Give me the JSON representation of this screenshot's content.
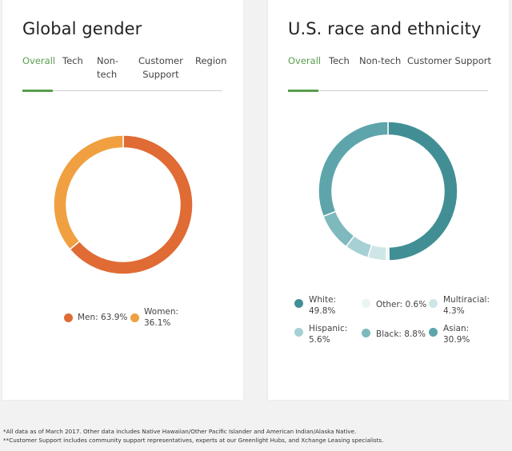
{
  "gender": {
    "title": "Global gender",
    "tabs": [
      {
        "label": "Overall",
        "active": true
      },
      {
        "label": "Tech",
        "active": false
      },
      {
        "label": "Non-\ntech",
        "active": false
      },
      {
        "label": "Customer\nSupport",
        "active": false
      },
      {
        "label": "Region",
        "active": false
      }
    ],
    "chart_data": {
      "type": "pie",
      "categories": [
        "Men",
        "Women"
      ],
      "values": [
        63.9,
        36.1
      ],
      "colors": [
        "#e06b35",
        "#f0a040"
      ]
    },
    "legend": [
      {
        "label": "Men: 63.9%",
        "color": "#e06b35"
      },
      {
        "label": "Women:\n36.1%",
        "color": "#f0a040"
      }
    ]
  },
  "race": {
    "title": "U.S. race and ethnicity",
    "tabs": [
      {
        "label": "Overall",
        "active": true
      },
      {
        "label": "Tech",
        "active": false
      },
      {
        "label": "Non-tech",
        "active": false
      },
      {
        "label": "Customer Support",
        "active": false
      }
    ],
    "chart_data": {
      "type": "pie",
      "categories": [
        "White",
        "Other",
        "Multiracial",
        "Hispanic",
        "Black",
        "Asian"
      ],
      "values": [
        49.8,
        0.6,
        4.3,
        5.6,
        8.8,
        30.9
      ],
      "colors": [
        "#418f95",
        "#e9f5f5",
        "#cfe6e7",
        "#a6d0d3",
        "#7eb9bd",
        "#5ea5ab"
      ]
    },
    "legend": [
      {
        "label": "White:\n49.8%",
        "color": "#418f95"
      },
      {
        "label": "Other: 0.6%",
        "color": "#e9f5f5"
      },
      {
        "label": "Multiracial:\n4.3%",
        "color": "#cfe6e7"
      },
      {
        "label": "Hispanic:\n5.6%",
        "color": "#a6d0d3"
      },
      {
        "label": "Black: 8.8%",
        "color": "#7eb9bd"
      },
      {
        "label": "Asian:\n30.9%",
        "color": "#5ea5ab"
      }
    ]
  },
  "footnotes": [
    "*All data as of March 2017. Other data includes Native Hawaiian/Other Pacific Islander and American Indian/Alaska Native.",
    "**Customer Support includes community support representatives, experts at our Greenlight Hubs, and Xchange Leasing specialists."
  ]
}
